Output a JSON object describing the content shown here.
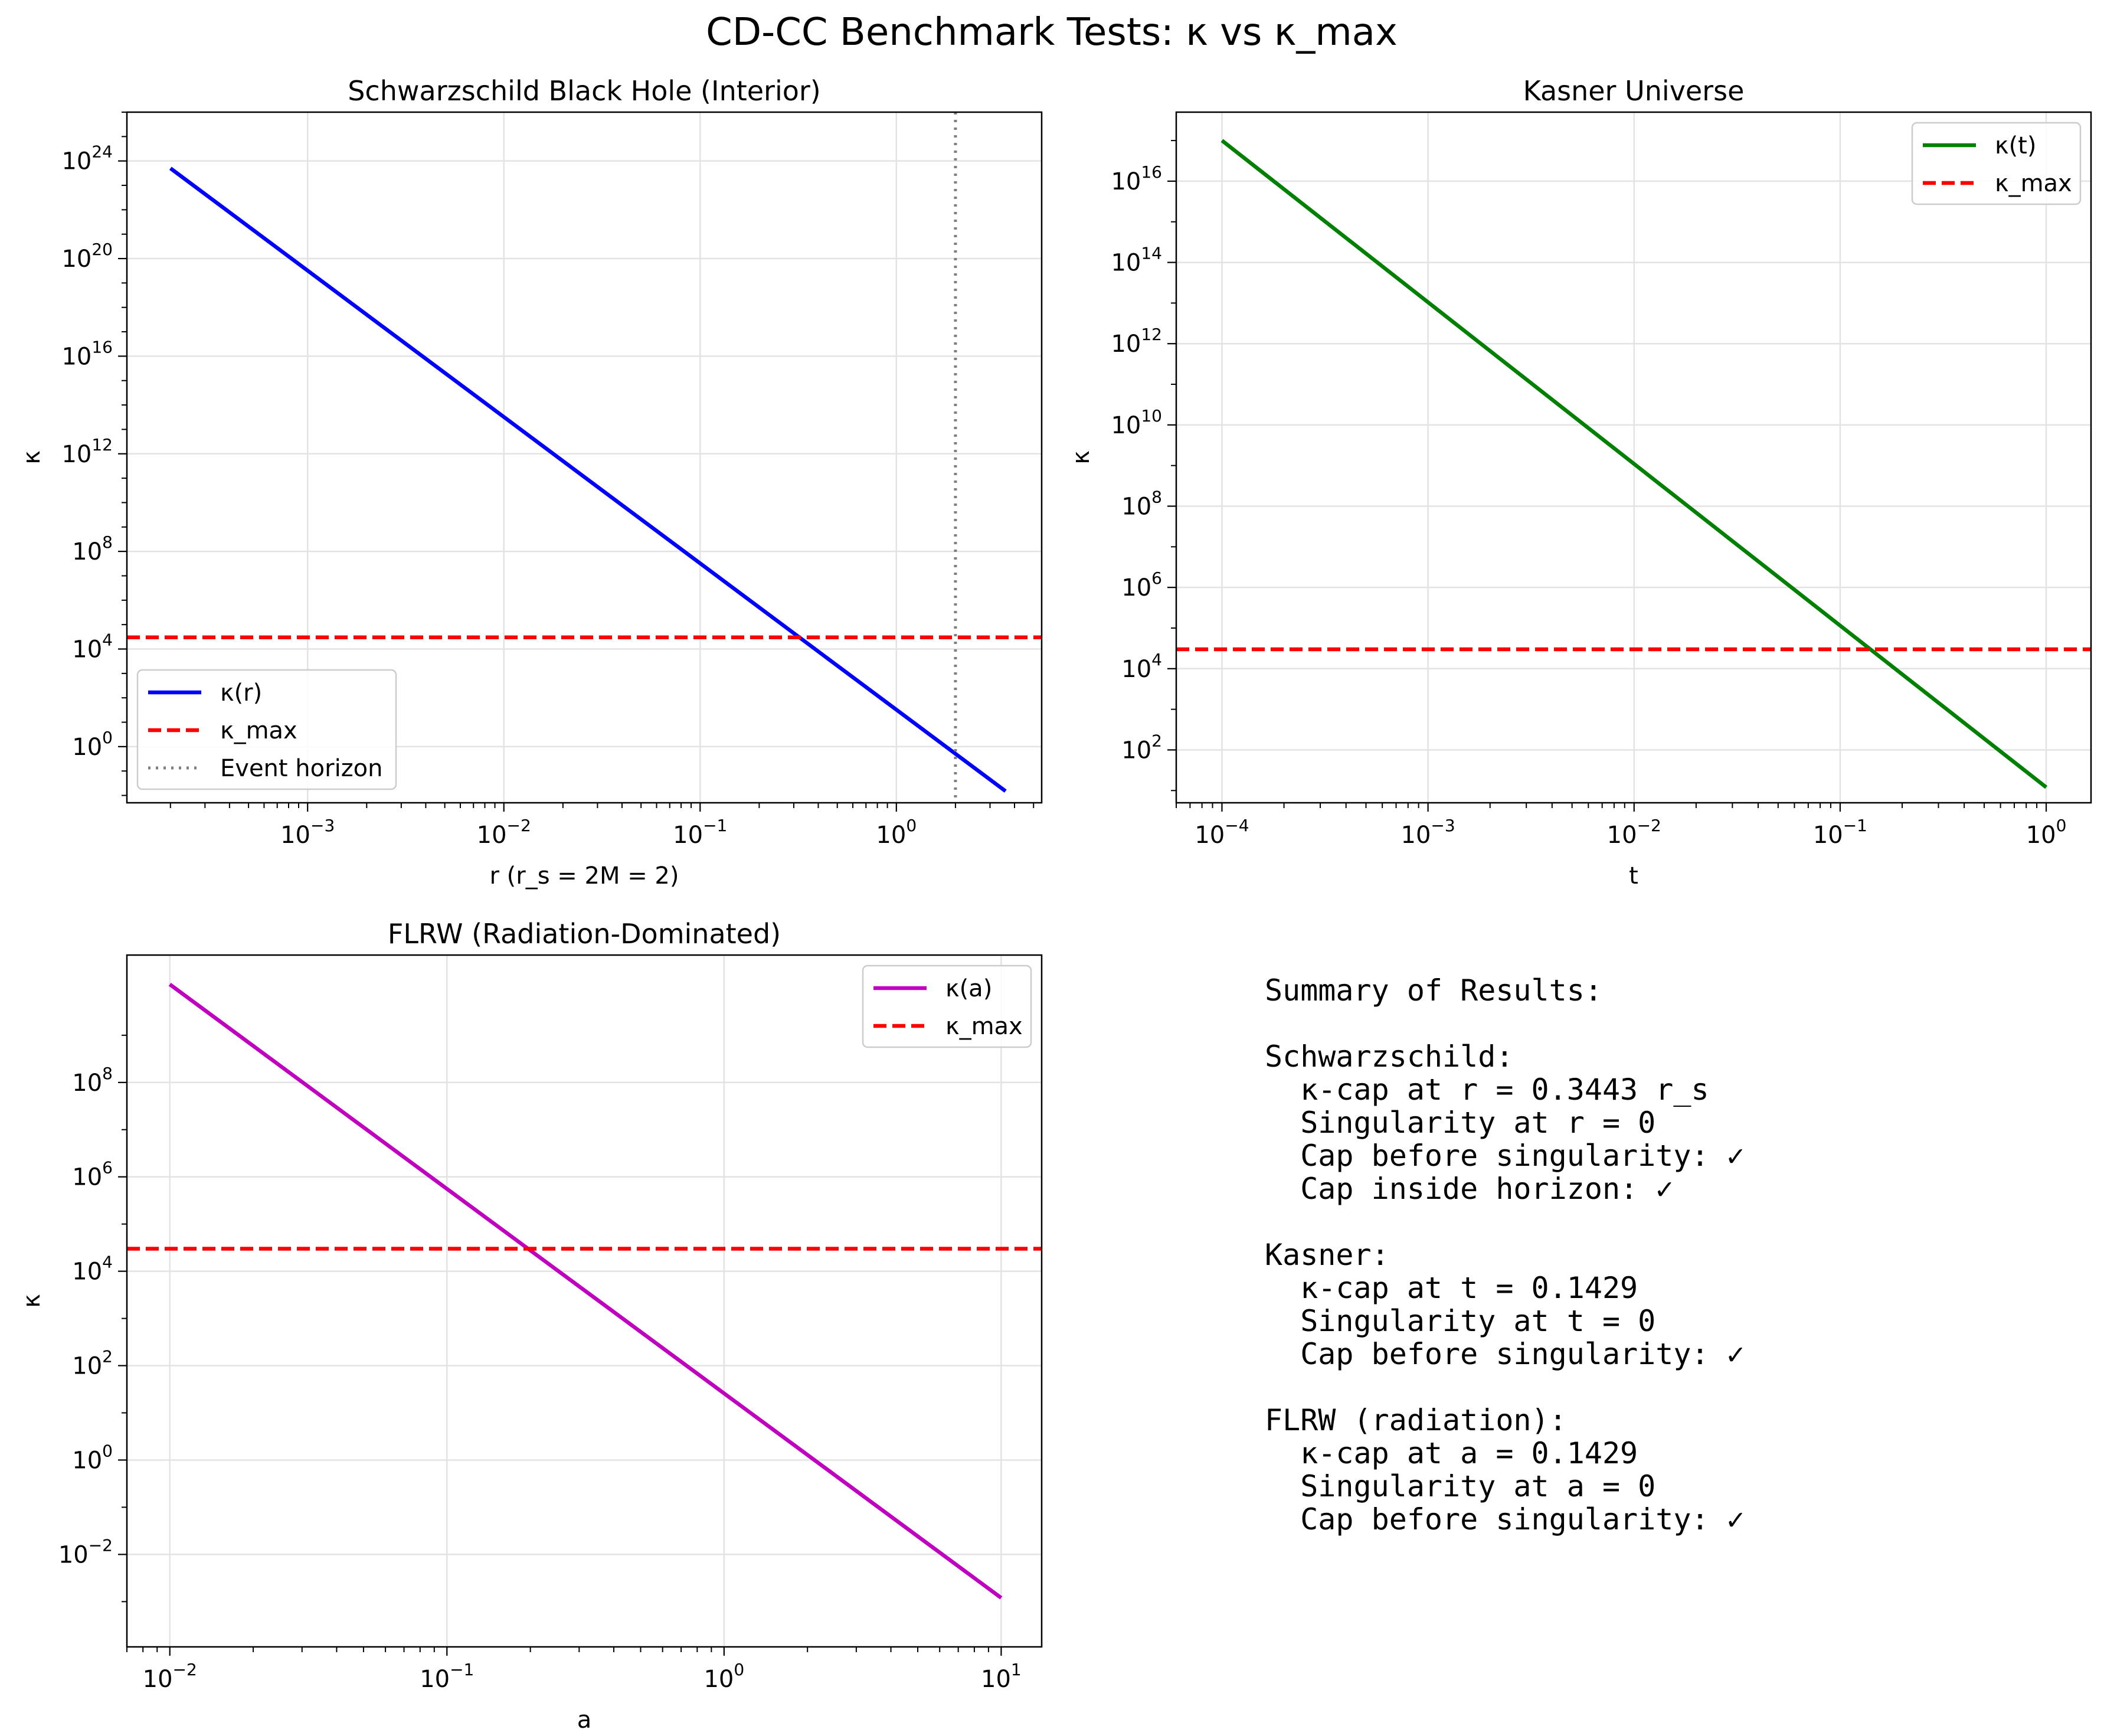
{
  "suptitle": "CD-CC Benchmark Tests: κ vs κ_max",
  "chart_data": [
    {
      "type": "line",
      "title": "Schwarzschild Black Hole (Interior)",
      "xlabel": "r (r_s = 2M = 2)",
      "ylabel": "κ",
      "xscale": "log",
      "yscale": "log",
      "xlim": [
        0.00012,
        5.5
      ],
      "ylim": [
        0.005,
        1e+26
      ],
      "xticks": [
        0.001,
        0.01,
        0.1,
        1
      ],
      "xtick_exps": [
        "−3",
        "−2",
        "−1",
        "0"
      ],
      "yticks": [
        1,
        10000.0,
        100000000.0,
        1000000000000.0,
        1e+16,
        1e+20,
        1e+24
      ],
      "ytick_exps": [
        "0",
        "4",
        "8",
        "12",
        "16",
        "20",
        "24"
      ],
      "grid": true,
      "legend_loc": "lower-left",
      "series": [
        {
          "name": "κ(r)",
          "style": "solid",
          "color": "#0000ff",
          "x": [
            0.0002,
            3.6
          ],
          "y": [
            5e+23,
            0.015
          ]
        },
        {
          "name": "κ_max",
          "style": "dashed",
          "color": "#ff0000",
          "hline": 30000
        },
        {
          "name": "Event horizon",
          "style": "dotted",
          "color": "#808080",
          "vline": 2
        }
      ]
    },
    {
      "type": "line",
      "title": "Kasner Universe",
      "xlabel": "t",
      "ylabel": "κ",
      "xscale": "log",
      "yscale": "log",
      "xlim": [
        6e-05,
        1.65
      ],
      "ylim": [
        5,
        5e+17
      ],
      "xticks": [
        0.0001,
        0.001,
        0.01,
        0.1,
        1
      ],
      "xtick_exps": [
        "−4",
        "−3",
        "−2",
        "−1",
        "0"
      ],
      "yticks": [
        100,
        10000,
        1000000.0,
        100000000.0,
        10000000000.0,
        1000000000000.0,
        100000000000000.0,
        1e+16
      ],
      "ytick_exps": [
        "2",
        "4",
        "6",
        "8",
        "10",
        "12",
        "14",
        "16"
      ],
      "grid": true,
      "legend_loc": "upper-right",
      "series": [
        {
          "name": "κ(t)",
          "style": "solid",
          "color": "#008000",
          "x": [
            0.0001,
            1
          ],
          "y": [
            1e+17,
            12
          ]
        },
        {
          "name": "κ_max",
          "style": "dashed",
          "color": "#ff0000",
          "hline": 30000
        }
      ]
    },
    {
      "type": "line",
      "title": "FLRW (Radiation-Dominated)",
      "xlabel": "a",
      "ylabel": "κ",
      "xscale": "log",
      "yscale": "log",
      "xlim": [
        0.007,
        14
      ],
      "ylim": [
        0.00011,
        50000000000.0
      ],
      "xticks": [
        0.01,
        0.1,
        1,
        10
      ],
      "xtick_exps": [
        "−2",
        "−1",
        "0",
        "1"
      ],
      "yticks": [
        0.01,
        1,
        100,
        10000,
        1000000.0,
        100000000.0
      ],
      "ytick_exps": [
        "−2",
        "0",
        "2",
        "4",
        "6",
        "8"
      ],
      "grid": true,
      "legend_loc": "upper-right",
      "series": [
        {
          "name": "κ(a)",
          "style": "solid",
          "color": "#bf00bf",
          "x": [
            0.01,
            10
          ],
          "y": [
            12000000000.0,
            0.0012
          ]
        },
        {
          "name": "κ_max",
          "style": "dashed",
          "color": "#ff0000",
          "hline": 30000
        }
      ]
    }
  ],
  "summary_lines": [
    "Summary of Results:",
    "",
    "Schwarzschild:",
    "  κ-cap at r = 0.3443 r_s",
    "  Singularity at r = 0",
    "  Cap before singularity: ✓",
    "  Cap inside horizon: ✓",
    "",
    "Kasner:",
    "  κ-cap at t = 0.1429",
    "  Singularity at t = 0",
    "  Cap before singularity: ✓",
    "",
    "FLRW (radiation):",
    "  κ-cap at a = 0.1429",
    "  Singularity at a = 0",
    "  Cap before singularity: ✓"
  ]
}
